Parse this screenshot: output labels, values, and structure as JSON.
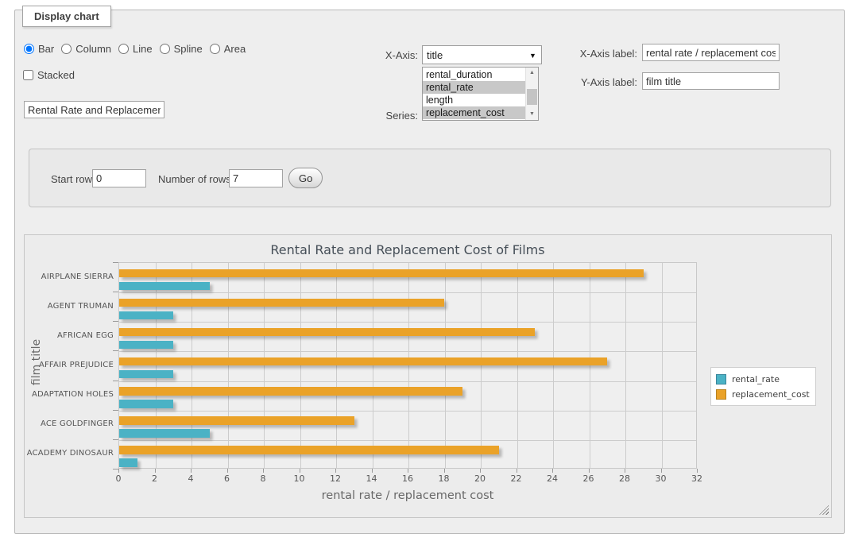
{
  "display_chart": {
    "legend": "Display chart",
    "chart_types": [
      {
        "label": "Bar",
        "selected": true
      },
      {
        "label": "Column",
        "selected": false
      },
      {
        "label": "Line",
        "selected": false
      },
      {
        "label": "Spline",
        "selected": false
      },
      {
        "label": "Area",
        "selected": false
      }
    ],
    "stacked_label": "Stacked",
    "stacked_checked": false,
    "title_input_value": "Rental Rate and Replacement Cost of Films",
    "x_axis_label_text": "X-Axis:",
    "x_axis_selected": "title",
    "series_label_text": "Series:",
    "series_options": [
      {
        "label": "rental_duration",
        "selected": false
      },
      {
        "label": "rental_rate",
        "selected": true
      },
      {
        "label": "length",
        "selected": false
      },
      {
        "label": "replacement_cost",
        "selected": true
      }
    ],
    "x_axis_label_field": {
      "label": "X-Axis label:",
      "value": "rental rate / replacement cost"
    },
    "y_axis_label_field": {
      "label": "Y-Axis label:",
      "value": "film title"
    }
  },
  "rows_form": {
    "start_row_label": "Start row:",
    "start_row_value": "0",
    "num_rows_label": "Number of rows:",
    "num_rows_value": "7",
    "go_label": "Go"
  },
  "chart_data": {
    "type": "bar",
    "orientation": "horizontal",
    "title": "Rental Rate and Replacement Cost of Films",
    "xlabel": "rental rate / replacement cost",
    "ylabel": "film title",
    "categories": [
      "AIRPLANE SIERRA",
      "AGENT TRUMAN",
      "AFRICAN EGG",
      "AFFAIR PREJUDICE",
      "ADAPTATION HOLES",
      "ACE GOLDFINGER",
      "ACADEMY DINOSAUR"
    ],
    "series": [
      {
        "name": "rental_rate",
        "color": "#4bb2c5",
        "swatch_border": "#39869c",
        "values": [
          4.99,
          2.99,
          2.99,
          2.99,
          2.99,
          4.99,
          0.99
        ]
      },
      {
        "name": "replacement_cost",
        "color": "#eaa228",
        "swatch_border": "#b8821f",
        "values": [
          28.99,
          17.99,
          22.99,
          26.99,
          18.99,
          12.99,
          20.99
        ]
      }
    ],
    "xlim": [
      0,
      32
    ],
    "x_tick_step": 2,
    "grid": true,
    "legend_position": "right"
  }
}
